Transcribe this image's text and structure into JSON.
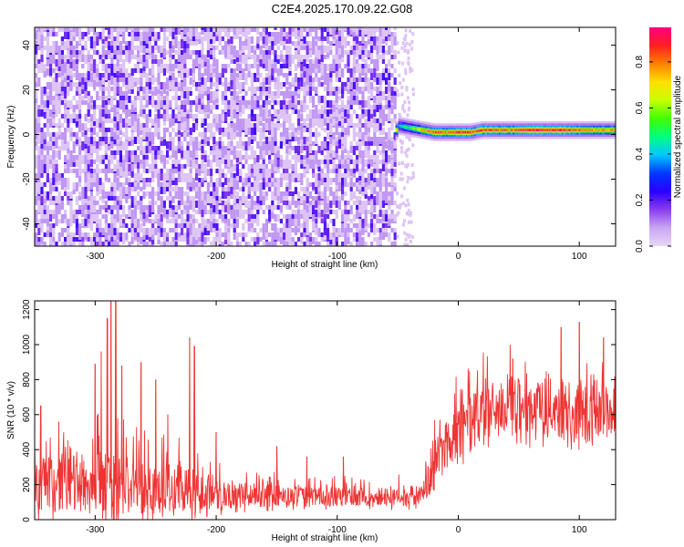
{
  "title": "C2E4.2025.170.09.22.G08",
  "chart_data": [
    {
      "type": "heatmap",
      "xlabel": "Height of straight line (km)",
      "ylabel": "Frequency (Hz)",
      "xlim": [
        -350,
        130
      ],
      "ylim": [
        -50,
        48
      ],
      "xticks": [
        -300,
        -200,
        -100,
        0,
        100
      ],
      "yticks": [
        -40,
        -20,
        0,
        20,
        40
      ],
      "xtick_labels": [
        "-300",
        "-200",
        "-100",
        "0",
        "100"
      ],
      "ytick_labels": [
        "-40",
        "-20",
        "0",
        "20",
        "40"
      ],
      "colorbar": {
        "label": "Normalized spectral amplitude",
        "range": [
          0,
          0.95
        ],
        "ticks": [
          0.0,
          0.2,
          0.4,
          0.6,
          0.8
        ],
        "tick_labels": [
          "0.0",
          "0.2",
          "0.4",
          "0.6",
          "0.8"
        ],
        "colors": [
          "#e9d7f7",
          "#c9a6f3",
          "#8a3cf0",
          "#2a00ff",
          "#0038ff",
          "#00c8ff",
          "#00ff80",
          "#40ff00",
          "#c8ff00",
          "#ffe000",
          "#ff8000",
          "#ff2020",
          "#ff0080"
        ]
      },
      "noise_region": {
        "x_range": [
          -350,
          -52
        ],
        "amplitude": "0.05-0.25"
      },
      "signal_band": {
        "x_range": [
          -52,
          130
        ],
        "frequency_hz": [
          4,
          3,
          2,
          1,
          1,
          1,
          1,
          2,
          2,
          2,
          2,
          2,
          2,
          2
        ],
        "x": [
          -50,
          -40,
          -30,
          -20,
          -10,
          0,
          10,
          20,
          40,
          60,
          80,
          100,
          115,
          130
        ],
        "peak_amplitude": [
          0.45,
          0.55,
          0.8,
          0.9,
          0.85,
          0.95,
          0.9,
          0.9,
          0.85,
          0.95,
          0.9,
          0.85,
          0.8,
          0.8
        ]
      },
      "grid": false
    },
    {
      "type": "line",
      "xlabel": "Height of straight line (km)",
      "ylabel": "SNR (10 * v/v)",
      "xlim": [
        -350,
        130
      ],
      "ylim": [
        0,
        1250
      ],
      "xticks": [
        -300,
        -200,
        -100,
        0,
        100
      ],
      "yticks": [
        0,
        200,
        400,
        600,
        800,
        1000,
        1200
      ],
      "xtick_labels": [
        "-300",
        "-200",
        "-100",
        "0",
        "100"
      ],
      "ytick_labels": [
        "0",
        "200",
        "400",
        "600",
        "800",
        "1000",
        "1200"
      ],
      "series": [
        {
          "color": "#ef3434",
          "x": [
            -350,
            -325,
            -300,
            -290,
            -280,
            -260,
            -240,
            -220,
            -200,
            -170,
            -140,
            -100,
            -60,
            -30,
            -20,
            -10,
            0,
            20,
            40,
            60,
            80,
            90,
            100,
            110,
            130
          ],
          "baseline": [
            190,
            200,
            200,
            210,
            200,
            190,
            180,
            170,
            150,
            140,
            130,
            130,
            130,
            140,
            300,
            430,
            520,
            600,
            650,
            640,
            640,
            620,
            600,
            610,
            620
          ],
          "spread": [
            140,
            160,
            180,
            200,
            180,
            160,
            140,
            130,
            90,
            70,
            60,
            55,
            55,
            60,
            140,
            160,
            170,
            170,
            170,
            170,
            170,
            180,
            170,
            160,
            150
          ],
          "spikes": [
            {
              "x": -345,
              "y": 650
            },
            {
              "x": -330,
              "y": 560
            },
            {
              "x": -300,
              "y": 890
            },
            {
              "x": -295,
              "y": 960
            },
            {
              "x": -290,
              "y": 1150
            },
            {
              "x": -287,
              "y": 1250
            },
            {
              "x": -283,
              "y": 1250
            },
            {
              "x": -278,
              "y": 880
            },
            {
              "x": -262,
              "y": 900
            },
            {
              "x": -250,
              "y": 800
            },
            {
              "x": -240,
              "y": 600
            },
            {
              "x": -222,
              "y": 1040
            },
            {
              "x": -218,
              "y": 990
            },
            {
              "x": -200,
              "y": 500
            },
            {
              "x": -150,
              "y": 420
            },
            {
              "x": -125,
              "y": 360
            },
            {
              "x": -95,
              "y": 360
            },
            {
              "x": 45,
              "y": 920
            },
            {
              "x": 85,
              "y": 1100
            },
            {
              "x": 100,
              "y": 1130
            },
            {
              "x": 120,
              "y": 1040
            }
          ]
        }
      ],
      "grid": false
    }
  ]
}
